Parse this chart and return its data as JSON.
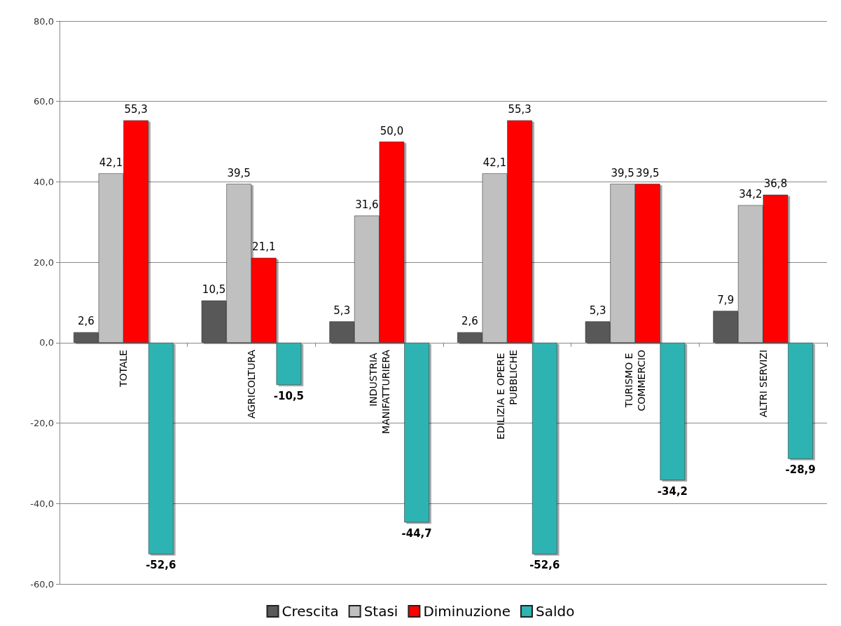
{
  "chart_data": {
    "type": "bar",
    "categories": [
      "TOTALE",
      "AGRICOLTURA",
      "INDUSTRIA MANIFATTURIERA",
      "EDILIZIA E OPERE PUBBLICHE",
      "TURISMO E COMMERCIO",
      "ALTRI SERVIZI"
    ],
    "series": [
      {
        "name": "Crescita",
        "color": "#595959",
        "values": [
          2.6,
          10.5,
          5.3,
          2.6,
          5.3,
          7.9
        ],
        "value_labels": [
          "2,6",
          "10,5",
          "5,3",
          "2,6",
          "5,3",
          "7,9"
        ]
      },
      {
        "name": "Stasi",
        "color": "#c0c0c0",
        "values": [
          42.1,
          39.5,
          31.6,
          42.1,
          39.5,
          34.2
        ],
        "value_labels": [
          "42,1",
          "39,5",
          "31,6",
          "42,1",
          "39,5",
          "34,2"
        ]
      },
      {
        "name": "Diminuzione",
        "color": "#ff0000",
        "values": [
          55.3,
          21.1,
          50.0,
          55.3,
          39.5,
          36.8
        ],
        "value_labels": [
          "55,3",
          "21,1",
          "50,0",
          "55,3",
          "39,5",
          "36,8"
        ]
      },
      {
        "name": "Saldo",
        "color": "#2fb3b3",
        "values": [
          -52.6,
          -10.5,
          -44.7,
          -52.6,
          -34.2,
          -28.9
        ],
        "value_labels": [
          "-52,6",
          "-10,5",
          "-44,7",
          "-52,6",
          "-34,2",
          "-28,9"
        ]
      }
    ],
    "ylim": [
      -60,
      80
    ],
    "yticks": [
      {
        "value": -60,
        "label": "-60,0"
      },
      {
        "value": -40,
        "label": "-40,0"
      },
      {
        "value": -20,
        "label": "-20,0"
      },
      {
        "value": 0,
        "label": "0,0"
      },
      {
        "value": 20,
        "label": "20,0"
      },
      {
        "value": 40,
        "label": "40,0"
      },
      {
        "value": 60,
        "label": "60,0"
      },
      {
        "value": 80,
        "label": "80,0"
      }
    ],
    "grid": "y",
    "legend": "bottom"
  }
}
